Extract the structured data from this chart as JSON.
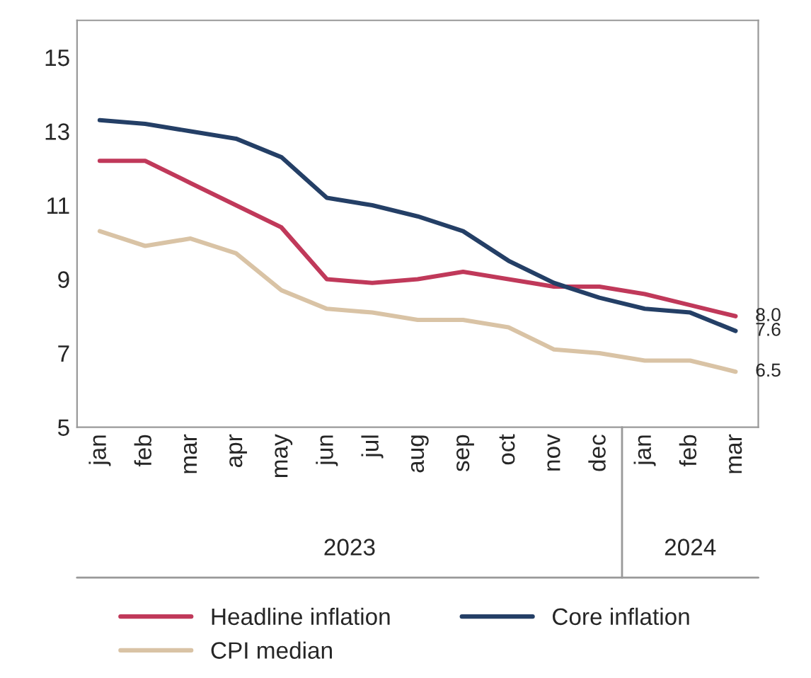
{
  "chart_data": {
    "type": "line",
    "categories": [
      "jan",
      "feb",
      "mar",
      "apr",
      "may",
      "jun",
      "jul",
      "aug",
      "sep",
      "oct",
      "nov",
      "dec",
      "jan",
      "feb",
      "mar"
    ],
    "annotations": [
      "2023",
      "2024"
    ],
    "ylim": [
      5,
      16
    ],
    "yticks": [
      5,
      7,
      9,
      11,
      13,
      15
    ],
    "grid": false,
    "legend": "bottom",
    "marker": "none",
    "line_style": "solid",
    "series": [
      {
        "name": "Headline inflation",
        "color": "#c0395a",
        "values": [
          12.2,
          12.2,
          11.6,
          11.0,
          10.4,
          9.0,
          8.9,
          9.0,
          9.2,
          9.0,
          8.8,
          8.8,
          8.6,
          8.3,
          8.0
        ],
        "value_labels": [
          null,
          null,
          null,
          null,
          null,
          null,
          null,
          null,
          null,
          null,
          null,
          null,
          null,
          null,
          "8.0"
        ]
      },
      {
        "name": "Core inflation",
        "color": "#243f66",
        "values": [
          13.3,
          13.2,
          13.0,
          12.8,
          12.3,
          11.2,
          11.0,
          10.7,
          10.3,
          9.5,
          8.9,
          8.5,
          8.2,
          8.1,
          7.6
        ],
        "value_labels": [
          null,
          null,
          null,
          null,
          null,
          null,
          null,
          null,
          null,
          null,
          null,
          null,
          null,
          null,
          "7.6"
        ]
      },
      {
        "name": "CPI median",
        "color": "#d9c3a5",
        "values": [
          10.3,
          9.9,
          10.1,
          9.7,
          8.7,
          8.2,
          8.1,
          7.9,
          7.9,
          7.7,
          7.1,
          7.0,
          6.8,
          6.8,
          6.5
        ],
        "value_labels": [
          null,
          null,
          null,
          null,
          null,
          null,
          null,
          null,
          null,
          null,
          null,
          null,
          null,
          null,
          "6.5"
        ]
      }
    ]
  }
}
